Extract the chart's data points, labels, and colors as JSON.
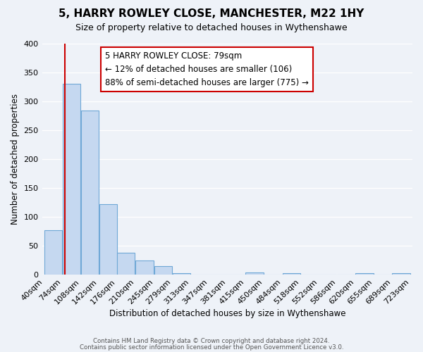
{
  "title": "5, HARRY ROWLEY CLOSE, MANCHESTER, M22 1HY",
  "subtitle": "Size of property relative to detached houses in Wythenshawe",
  "xlabel": "Distribution of detached houses by size in Wythenshawe",
  "ylabel": "Number of detached properties",
  "bar_edges": [
    40,
    74,
    108,
    142,
    176,
    210,
    245,
    279,
    313,
    347,
    381,
    415,
    450,
    484,
    518,
    552,
    586,
    620,
    655,
    689,
    723
  ],
  "bar_heights": [
    77,
    330,
    284,
    122,
    38,
    25,
    15,
    3,
    0,
    0,
    0,
    4,
    0,
    3,
    0,
    0,
    0,
    3,
    0,
    3
  ],
  "bar_color": "#c5d8f0",
  "bar_edge_color": "#6fa8d6",
  "property_line_x": 79,
  "property_line_color": "#cc0000",
  "ylim": [
    0,
    400
  ],
  "yticks": [
    0,
    50,
    100,
    150,
    200,
    250,
    300,
    350,
    400
  ],
  "annotation_title": "5 HARRY ROWLEY CLOSE: 79sqm",
  "annotation_line1": "← 12% of detached houses are smaller (106)",
  "annotation_line2": "88% of semi-detached houses are larger (775) →",
  "footer_line1": "Contains HM Land Registry data © Crown copyright and database right 2024.",
  "footer_line2": "Contains public sector information licensed under the Open Government Licence v3.0.",
  "background_color": "#eef2f8",
  "plot_bg_color": "#eef2f8"
}
